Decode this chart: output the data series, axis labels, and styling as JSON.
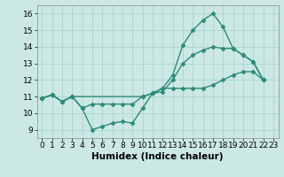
{
  "line1_x": [
    0,
    1,
    2,
    3,
    4,
    5,
    6,
    7,
    8,
    9,
    10,
    11,
    12,
    13,
    14,
    15,
    16,
    17,
    18,
    19,
    20,
    21,
    22
  ],
  "line1_y": [
    10.9,
    11.1,
    10.7,
    11.0,
    10.3,
    9.0,
    9.2,
    9.4,
    9.5,
    9.4,
    10.3,
    11.2,
    11.5,
    12.3,
    14.1,
    15.0,
    15.6,
    16.0,
    15.2,
    13.9,
    13.5,
    13.1,
    12.0
  ],
  "line2_x": [
    0,
    1,
    2,
    3,
    4,
    5,
    6,
    7,
    8,
    9,
    10,
    11,
    12,
    13,
    14,
    15,
    16,
    17,
    18,
    19,
    20,
    21,
    22
  ],
  "line2_y": [
    10.9,
    11.1,
    10.7,
    11.0,
    10.3,
    10.55,
    10.55,
    10.55,
    10.55,
    10.55,
    11.0,
    11.2,
    11.3,
    12.0,
    13.0,
    13.5,
    13.8,
    14.0,
    13.9,
    13.9,
    13.5,
    13.1,
    12.0
  ],
  "line3_x": [
    0,
    1,
    2,
    3,
    10,
    11,
    12,
    13,
    14,
    15,
    16,
    17,
    18,
    19,
    20,
    21,
    22
  ],
  "line3_y": [
    10.9,
    11.1,
    10.7,
    11.0,
    11.0,
    11.2,
    11.5,
    11.5,
    11.5,
    11.5,
    11.5,
    11.7,
    12.0,
    12.3,
    12.5,
    12.5,
    12.0
  ],
  "line_color": "#2e8b77",
  "bg_color": "#cce8e5",
  "grid_color": "#aad4d0",
  "xlabel": "Humidex (Indice chaleur)",
  "xlim": [
    -0.5,
    23.5
  ],
  "ylim": [
    8.5,
    16.5
  ],
  "xticks": [
    0,
    1,
    2,
    3,
    4,
    5,
    6,
    7,
    8,
    9,
    10,
    11,
    12,
    13,
    14,
    15,
    16,
    17,
    18,
    19,
    20,
    21,
    22,
    23
  ],
  "yticks": [
    9,
    10,
    11,
    12,
    13,
    14,
    15,
    16
  ],
  "tick_fontsize": 6.5,
  "xlabel_fontsize": 7.5,
  "marker": "D",
  "marker_size": 2.5,
  "line_width": 1.0
}
